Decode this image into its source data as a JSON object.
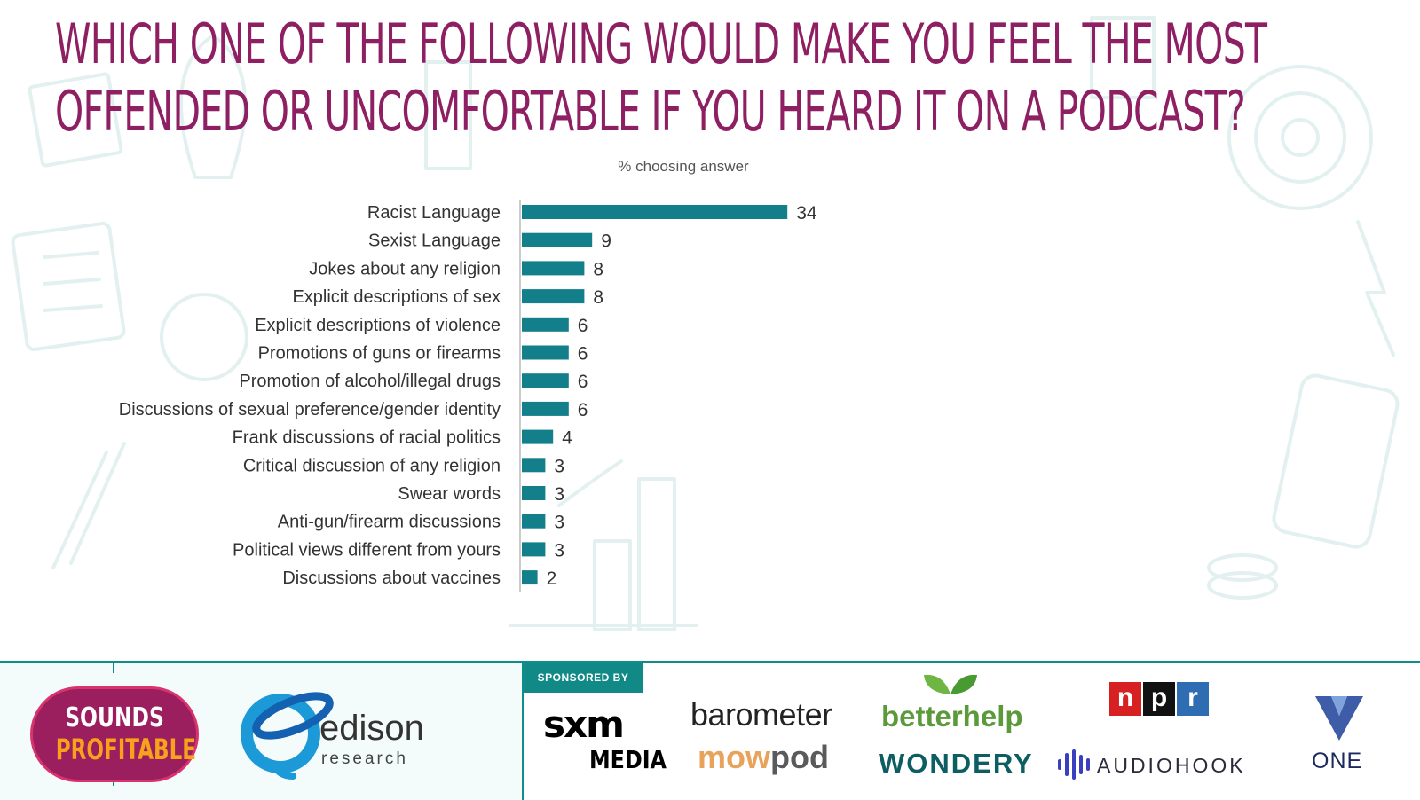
{
  "header": {
    "title": "WHICH ONE OF THE FOLLOWING WOULD MAKE YOU FEEL THE MOST OFFENDED OR UNCOMFORTABLE IF YOU HEARD IT ON A PODCAST?",
    "subtitle": "% choosing answer"
  },
  "chart_data": {
    "type": "bar",
    "orientation": "horizontal",
    "title": "WHICH ONE OF THE FOLLOWING WOULD MAKE YOU FEEL THE MOST OFFENDED OR UNCOMFORTABLE IF YOU HEARD IT ON A PODCAST?",
    "subtitle": "% choosing answer",
    "categories": [
      "Racist Language",
      "Sexist Language",
      "Jokes about any religion",
      "Explicit descriptions of sex",
      "Explicit descriptions of violence",
      "Promotions of guns or firearms",
      "Promotion of alcohol/illegal drugs",
      "Discussions of sexual preference/gender identity",
      "Frank discussions of racial politics",
      "Critical discussion of any religion",
      "Swear words",
      "Anti-gun/firearm discussions",
      "Political views different from yours",
      "Discussions about vaccines"
    ],
    "values": [
      34,
      9,
      8,
      8,
      6,
      6,
      6,
      6,
      4,
      3,
      3,
      3,
      3,
      2
    ],
    "xlim": [
      0,
      40
    ],
    "grid": false,
    "legend": "none",
    "data_labels": true,
    "bar_color": "#127f8a"
  },
  "footer": {
    "sponsored_label": "SPONSORED BY",
    "sounds_profitable": [
      "SOUNDS",
      "PROFITABLE"
    ],
    "edison": {
      "name": "edison",
      "sub": "research"
    },
    "sxm": [
      "sxm",
      "MEDIA"
    ],
    "barometer": "barometer",
    "mowpod": {
      "a": "mow",
      "b": "pod"
    },
    "betterhelp": "betterhelp",
    "wondery": "WONDERY",
    "npr": [
      "n",
      "p",
      "r"
    ],
    "audiohook": "AUDIOHOOK",
    "one": "ONE"
  }
}
